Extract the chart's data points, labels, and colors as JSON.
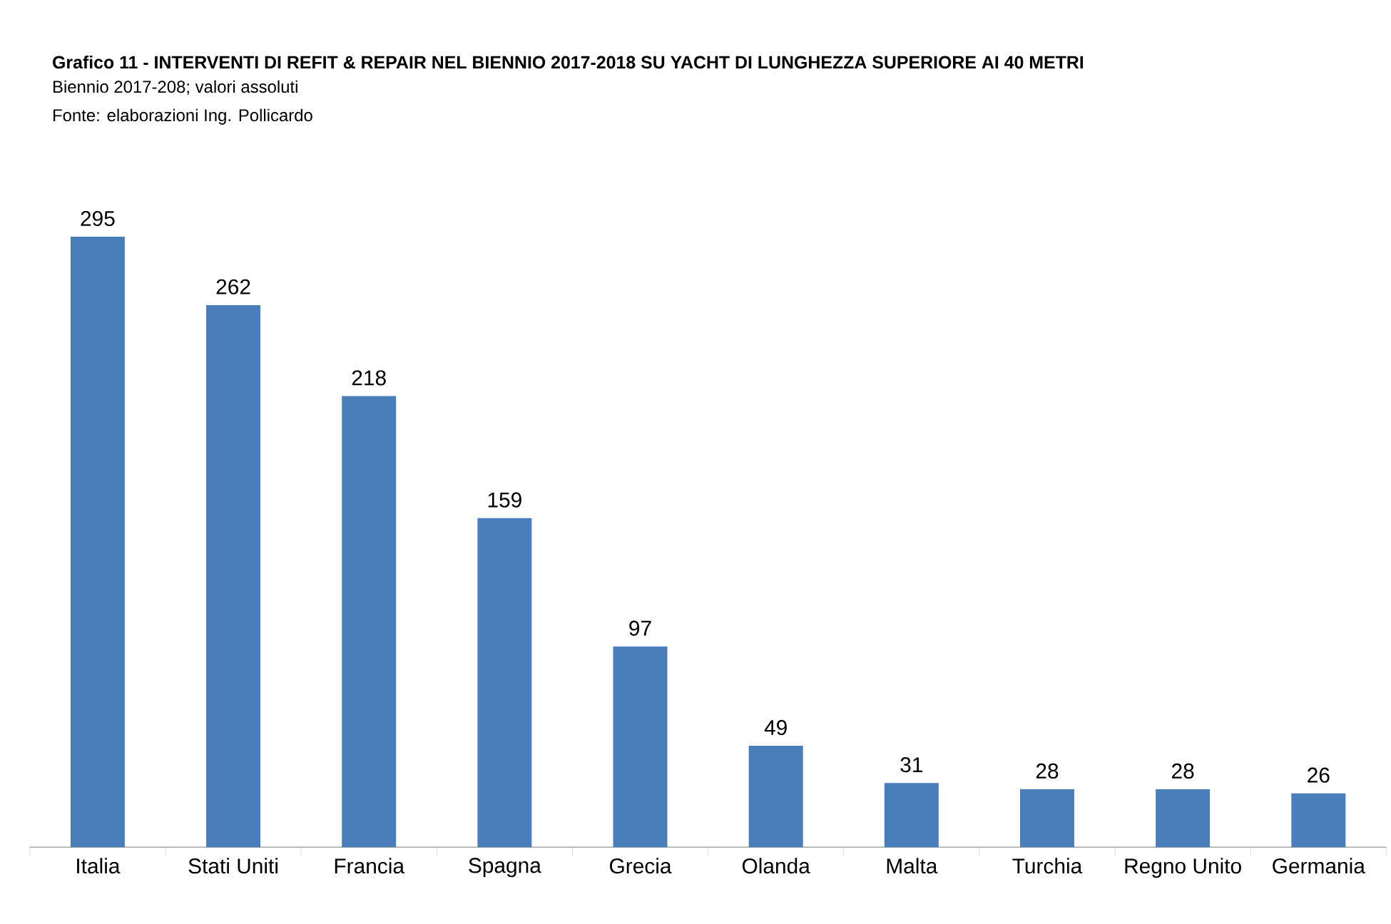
{
  "chart_data": {
    "type": "bar",
    "title": "Grafico 11 - INTERVENTI DI REFIT & REPAIR NEL BIENNIO 2017-2018 SU YACHT DI LUNGHEZZA SUPERIORE AI 40 METRI",
    "subtitle": "Biennio 2017-208; valori assoluti",
    "annotations": [
      "Fonte: elaborazioni Ing. Pollicardo"
    ],
    "categories": [
      "Italia",
      "Stati Uniti",
      "Francia",
      "Spagna",
      "Grecia",
      "Olanda",
      "Malta",
      "Turchia",
      "Regno Unito",
      "Germania"
    ],
    "values": [
      295,
      262,
      218,
      159,
      97,
      49,
      31,
      28,
      28,
      26
    ],
    "color": "#4a7ebb",
    "data_labels": true
  }
}
